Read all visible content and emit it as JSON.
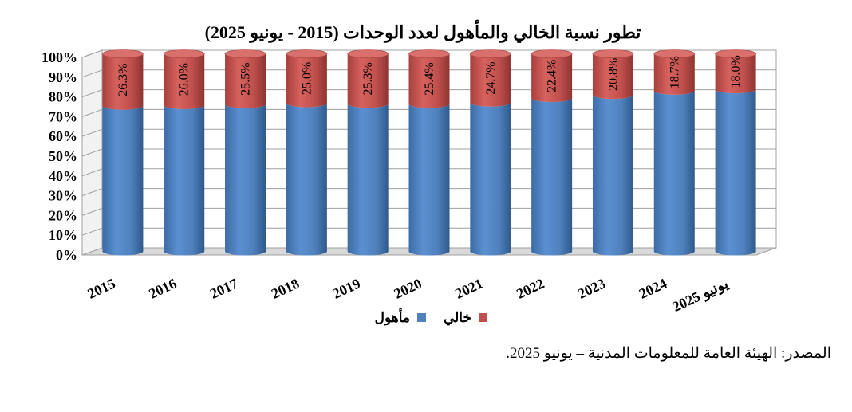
{
  "chart_data": {
    "type": "bar",
    "stacked": true,
    "title": "تطور نسبة الخالي والمأهول لعدد الوحدات (2015 - يونيو 2025)",
    "categories": [
      "2015",
      "2016",
      "2017",
      "2018",
      "2019",
      "2020",
      "2021",
      "2022",
      "2023",
      "2024",
      "يونيو 2025"
    ],
    "series": [
      {
        "name": "مأهول",
        "color": "#4f81bd",
        "values": [
          73.7,
          74.0,
          74.5,
          75.0,
          74.7,
          74.6,
          75.3,
          77.6,
          79.2,
          81.3,
          82.0
        ]
      },
      {
        "name": "خالي",
        "color": "#c0504d",
        "values": [
          26.3,
          26.0,
          25.5,
          25.0,
          25.3,
          25.4,
          24.7,
          22.4,
          20.8,
          18.7,
          18.0
        ]
      }
    ],
    "data_labels": [
      "26.3%",
      "26.0%",
      "25.5%",
      "25.0%",
      "25.3%",
      "25.4%",
      "24.7%",
      "22.4%",
      "20.8%",
      "18.7%",
      "18.0%"
    ],
    "ylim": [
      0,
      100
    ],
    "yticks": [
      "0%",
      "10%",
      "20%",
      "30%",
      "40%",
      "50%",
      "60%",
      "70%",
      "80%",
      "90%",
      "100%"
    ],
    "grid": true,
    "legend_position": "bottom"
  },
  "source_note": {
    "label": "المصدر",
    "text": ": الهيئة العامة للمعلومات المدنية – يونيو 2025."
  }
}
